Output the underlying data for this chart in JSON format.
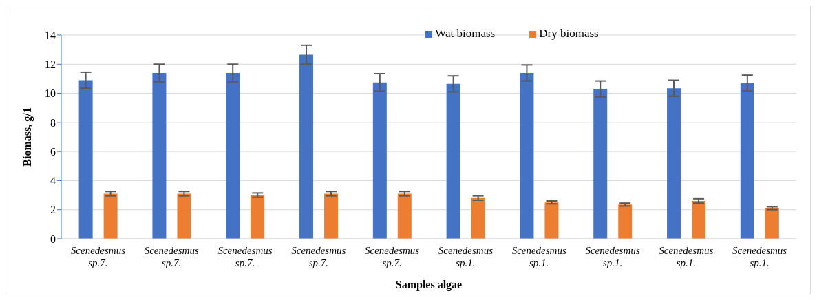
{
  "chart_data": {
    "type": "bar",
    "xlabel": "Samples algae",
    "ylabel": "Biomass, g/1",
    "categories": [
      "Scenedesmus sp.7.",
      "Scenedesmus sp.7.",
      "Scenedesmus sp.7.",
      "Scenedesmus sp.7.",
      "Scenedesmus sp.7.",
      "Scenedesmus sp.1.",
      "Scenedesmus sp.1.",
      "Scenedesmus sp.1.",
      "Scenedesmus sp.1.",
      "Scenedesmus sp.1."
    ],
    "series": [
      {
        "name": "Wat biomass",
        "color": "#4472c4",
        "values": [
          10.9,
          11.4,
          11.4,
          12.65,
          10.75,
          10.65,
          11.4,
          10.3,
          10.35,
          10.7
        ],
        "errors": [
          0.55,
          0.6,
          0.6,
          0.65,
          0.6,
          0.55,
          0.55,
          0.55,
          0.55,
          0.55
        ]
      },
      {
        "name": "Dry biomass",
        "color": "#ed7d31",
        "values": [
          3.1,
          3.1,
          3.0,
          3.1,
          3.1,
          2.8,
          2.5,
          2.35,
          2.6,
          2.1
        ],
        "errors": [
          0.15,
          0.15,
          0.15,
          0.15,
          0.15,
          0.15,
          0.1,
          0.1,
          0.15,
          0.1
        ]
      }
    ],
    "ylim": [
      0,
      14
    ],
    "yticks": [
      0,
      2,
      4,
      6,
      8,
      10,
      12,
      14
    ],
    "grid": "y",
    "legend": "top"
  }
}
